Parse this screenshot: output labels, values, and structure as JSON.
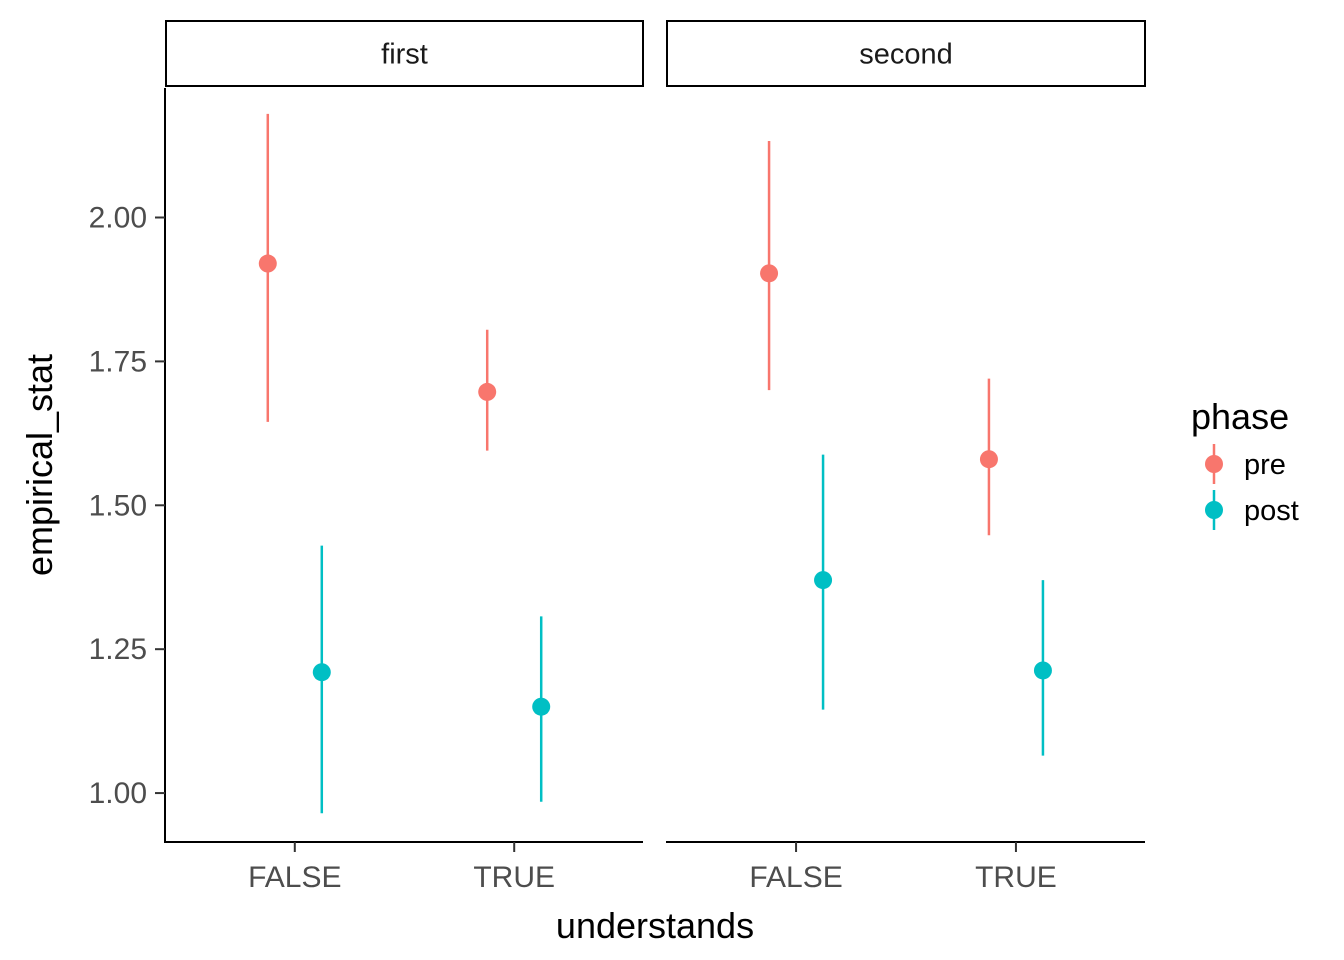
{
  "chart_data": {
    "type": "scatter",
    "xlabel": "understands",
    "ylabel": "empirical_stat",
    "categories": [
      "FALSE",
      "TRUE"
    ],
    "yticks": [
      "1.00",
      "1.25",
      "1.50",
      "1.75",
      "2.00"
    ],
    "ylim": [
      0.915,
      2.225
    ],
    "grid": false,
    "legend": {
      "title": "phase",
      "placement": "right",
      "entries": [
        "pre",
        "post"
      ]
    },
    "colors": {
      "pre": "#F8766D",
      "post": "#00BFC4"
    },
    "facets": [
      {
        "label": "first",
        "series": [
          {
            "name": "pre",
            "points": [
              {
                "x": "FALSE",
                "y": 1.92,
                "ymin": 1.645,
                "ymax": 2.18
              },
              {
                "x": "TRUE",
                "y": 1.697,
                "ymin": 1.595,
                "ymax": 1.805
              }
            ]
          },
          {
            "name": "post",
            "points": [
              {
                "x": "FALSE",
                "y": 1.21,
                "ymin": 0.965,
                "ymax": 1.43
              },
              {
                "x": "TRUE",
                "y": 1.15,
                "ymin": 0.985,
                "ymax": 1.307
              }
            ]
          }
        ]
      },
      {
        "label": "second",
        "series": [
          {
            "name": "pre",
            "points": [
              {
                "x": "FALSE",
                "y": 1.903,
                "ymin": 1.7,
                "ymax": 2.133
              },
              {
                "x": "TRUE",
                "y": 1.58,
                "ymin": 1.448,
                "ymax": 1.72
              }
            ]
          },
          {
            "name": "post",
            "points": [
              {
                "x": "FALSE",
                "y": 1.37,
                "ymin": 1.145,
                "ymax": 1.588
              },
              {
                "x": "TRUE",
                "y": 1.213,
                "ymin": 1.065,
                "ymax": 1.37
              }
            ]
          }
        ]
      }
    ]
  }
}
